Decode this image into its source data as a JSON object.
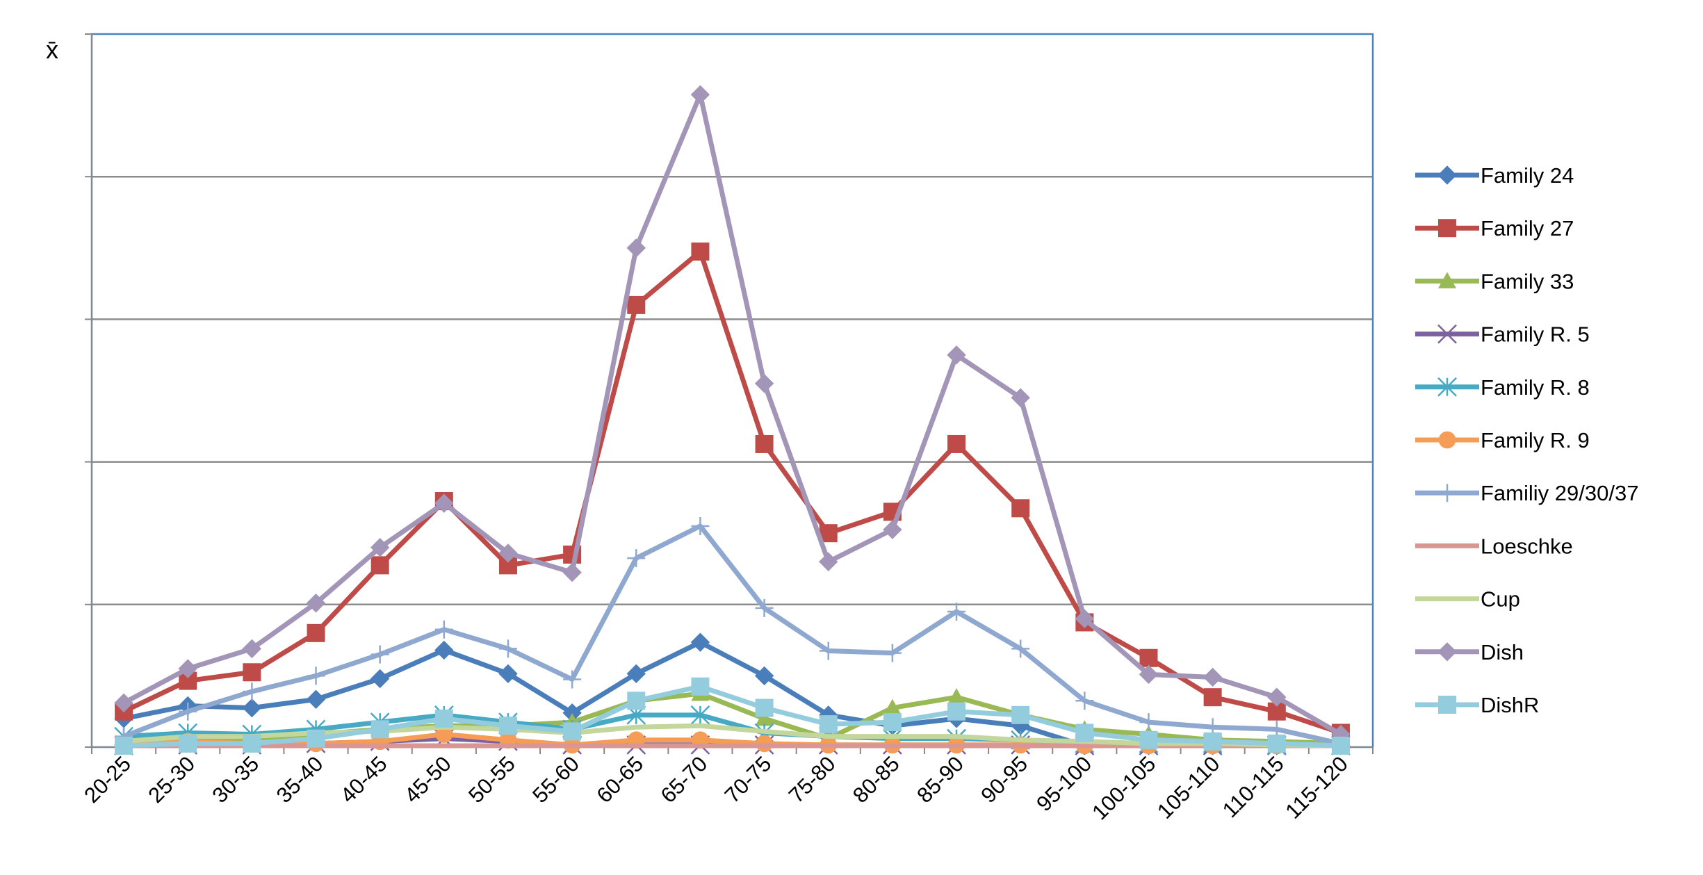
{
  "chart_data": {
    "type": "line",
    "ylabel": "x̄",
    "xlabel": "",
    "title": "",
    "grid": true,
    "legend_position": "right",
    "ylim": [
      0,
      10
    ],
    "y_gridlines": [
      2,
      4,
      6,
      8
    ],
    "categories": [
      "20-25",
      "25-30",
      "30-35",
      "35-40",
      "40-45",
      "45-50",
      "50-55",
      "55-60",
      "60-65",
      "65-70",
      "70-75",
      "75-80",
      "80-85",
      "85-90",
      "90-95",
      "95-100",
      "100-105",
      "105-110",
      "110-115",
      "115-120"
    ],
    "series": [
      {
        "name": "Family 24",
        "color": "#4a7ebb",
        "marker": "diamond",
        "values": [
          0.4,
          0.58,
          0.55,
          0.67,
          0.96,
          1.36,
          1.03,
          0.48,
          1.03,
          1.47,
          1.0,
          0.45,
          0.3,
          0.4,
          0.3,
          0.02,
          0.02,
          0.02,
          0.02,
          0.02
        ]
      },
      {
        "name": "Family 27",
        "color": "#be4b48",
        "marker": "square",
        "values": [
          0.5,
          0.93,
          1.05,
          1.6,
          2.55,
          3.45,
          2.55,
          2.7,
          6.2,
          6.95,
          4.25,
          3.0,
          3.3,
          4.25,
          3.35,
          1.75,
          1.25,
          0.7,
          0.5,
          0.2
        ]
      },
      {
        "name": "Family 33",
        "color": "#98b954",
        "marker": "triangle",
        "values": [
          0.05,
          0.12,
          0.12,
          0.18,
          0.25,
          0.3,
          0.3,
          0.35,
          0.65,
          0.75,
          0.4,
          0.12,
          0.55,
          0.7,
          0.45,
          0.25,
          0.18,
          0.1,
          0.08,
          0.05
        ]
      },
      {
        "name": "Family R. 5",
        "color": "#7d60a0",
        "marker": "x",
        "values": [
          0.02,
          0.03,
          0.03,
          0.05,
          0.08,
          0.12,
          0.08,
          0.03,
          0.03,
          0.03,
          0.03,
          0.03,
          0.03,
          0.03,
          0.03,
          0.02,
          0.02,
          0.02,
          0.02,
          0.02
        ]
      },
      {
        "name": "Family R. 8",
        "color": "#46aac5",
        "marker": "star",
        "values": [
          0.15,
          0.2,
          0.18,
          0.25,
          0.35,
          0.45,
          0.35,
          0.25,
          0.45,
          0.45,
          0.2,
          0.15,
          0.12,
          0.12,
          0.1,
          0.05,
          0.05,
          0.05,
          0.03,
          0.02
        ]
      },
      {
        "name": "Family R. 9",
        "color": "#f59d56",
        "marker": "circle",
        "values": [
          0.05,
          0.08,
          0.05,
          0.05,
          0.08,
          0.18,
          0.1,
          0.03,
          0.1,
          0.1,
          0.05,
          0.03,
          0.03,
          0.03,
          0.03,
          0.02,
          0.02,
          0.02,
          0.02,
          0.02
        ]
      },
      {
        "name": "Familiy 29/30/37",
        "color": "#8fa8d0",
        "marker": "plus",
        "values": [
          0.15,
          0.5,
          0.78,
          1.0,
          1.3,
          1.65,
          1.38,
          0.95,
          2.65,
          3.1,
          1.95,
          1.35,
          1.32,
          1.9,
          1.38,
          0.65,
          0.35,
          0.28,
          0.25,
          0.05
        ]
      },
      {
        "name": "Loeschke",
        "color": "#d99694",
        "marker": "none",
        "values": [
          0.02,
          0.02,
          0.02,
          0.02,
          0.02,
          0.02,
          0.02,
          0.02,
          0.02,
          0.02,
          0.02,
          0.02,
          0.02,
          0.02,
          0.02,
          0.02,
          0.02,
          0.02,
          0.02,
          0.02
        ]
      },
      {
        "name": "Cup",
        "color": "#c3d69b",
        "marker": "none",
        "values": [
          0.08,
          0.15,
          0.15,
          0.2,
          0.22,
          0.28,
          0.25,
          0.2,
          0.28,
          0.3,
          0.22,
          0.15,
          0.15,
          0.15,
          0.1,
          0.08,
          0.05,
          0.05,
          0.03,
          0.02
        ]
      },
      {
        "name": "Dish",
        "color": "#a295b8",
        "marker": "diamond",
        "values": [
          0.62,
          1.1,
          1.38,
          2.02,
          2.8,
          3.42,
          2.72,
          2.45,
          7.0,
          9.15,
          5.1,
          2.6,
          3.05,
          5.5,
          4.9,
          1.8,
          1.02,
          0.98,
          0.7,
          0.18
        ]
      },
      {
        "name": "DishR",
        "color": "#93cddd",
        "marker": "square",
        "values": [
          0.02,
          0.05,
          0.05,
          0.12,
          0.25,
          0.4,
          0.3,
          0.22,
          0.65,
          0.85,
          0.55,
          0.32,
          0.35,
          0.5,
          0.45,
          0.2,
          0.1,
          0.08,
          0.05,
          0.02
        ]
      }
    ]
  }
}
